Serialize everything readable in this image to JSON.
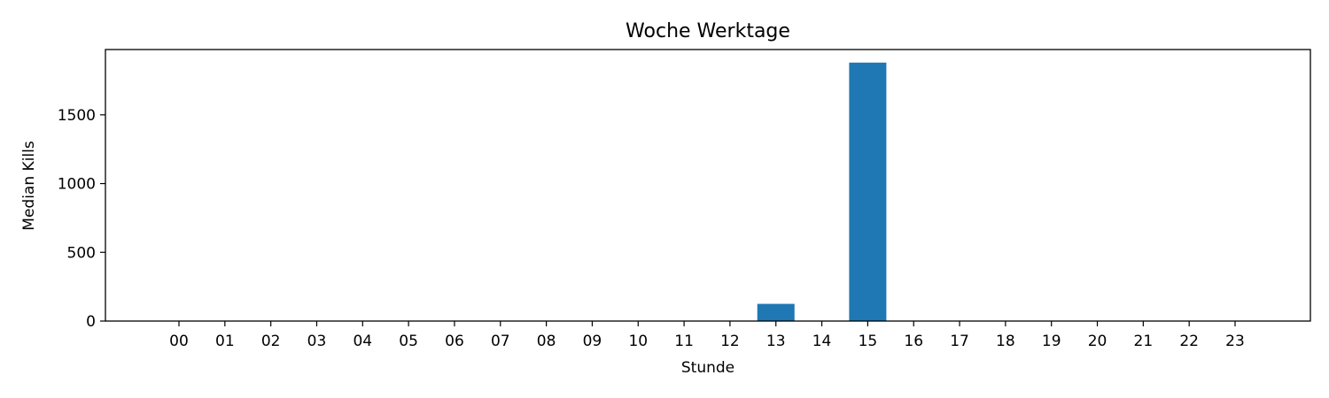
{
  "chart_data": {
    "type": "bar",
    "title": "Woche Werktage",
    "xlabel": "Stunde",
    "ylabel": "Median Kills",
    "categories": [
      "00",
      "01",
      "02",
      "03",
      "04",
      "05",
      "06",
      "07",
      "08",
      "09",
      "10",
      "11",
      "12",
      "13",
      "14",
      "15",
      "16",
      "17",
      "18",
      "19",
      "20",
      "21",
      "22",
      "23"
    ],
    "values": [
      0,
      0,
      0,
      0,
      0,
      0,
      0,
      0,
      0,
      0,
      0,
      0,
      0,
      125,
      0,
      1880,
      0,
      0,
      0,
      0,
      0,
      0,
      0,
      0
    ],
    "yticks": [
      0,
      500,
      1000,
      1500
    ],
    "ylim": [
      0,
      1975
    ],
    "grid": false,
    "bar_color": "#1f77b4"
  }
}
